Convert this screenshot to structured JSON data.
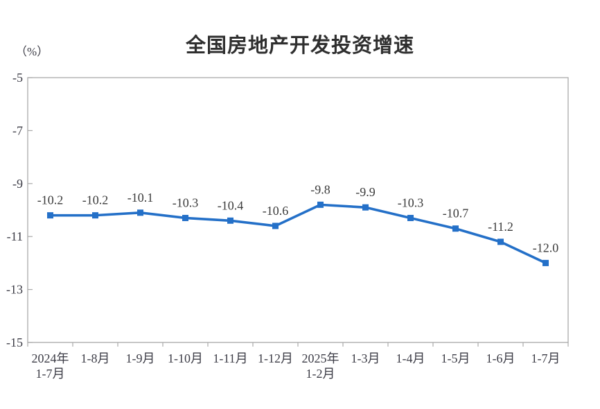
{
  "title": "全国房地产开发投资增速",
  "unit_label": "（%）",
  "colors": {
    "line": "#2470c8",
    "marker": "#2470c8",
    "axis": "#a9a9a9",
    "axis_text": "#3c3c46",
    "data_label_text": "#3a3a3a",
    "title_text": "#2f2f2f",
    "background": "#ffffff"
  },
  "chart_data": {
    "type": "line",
    "title": "全国房地产开发投资增速",
    "xlabel": "",
    "ylabel": "（%）",
    "grid": false,
    "legend_position": "none",
    "marker": "square",
    "ylim": [
      -15,
      -5
    ],
    "yticks": [
      -5,
      -7,
      -9,
      -11,
      -13,
      -15
    ],
    "categories": [
      "2024年\n1-7月",
      "1-8月",
      "1-9月",
      "1-10月",
      "1-11月",
      "1-12月",
      "2025年\n1-2月",
      "1-3月",
      "1-4月",
      "1-5月",
      "1-6月",
      "1-7月"
    ],
    "values": [
      -10.2,
      -10.2,
      -10.1,
      -10.3,
      -10.4,
      -10.6,
      -9.8,
      -9.9,
      -10.3,
      -10.7,
      -11.2,
      -12.0
    ],
    "data_labels": [
      "-10.2",
      "-10.2",
      "-10.1",
      "-10.3",
      "-10.4",
      "-10.6",
      "-9.8",
      "-9.9",
      "-10.3",
      "-10.7",
      "-11.2",
      "-12.0"
    ]
  }
}
